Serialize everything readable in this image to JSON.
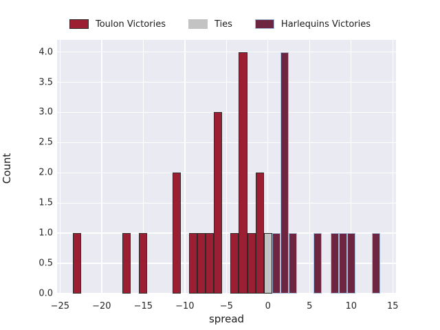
{
  "figure": {
    "background": "#ffffff",
    "plot_background": "#eaeaf2",
    "grid_color": "#ffffff",
    "text_color": "#1a1a1a",
    "tick_color": "#262626"
  },
  "legend": {
    "position": "top-horizontal",
    "items": [
      {
        "label": "Toulon Victories",
        "swatch_fill": "#9c1e32",
        "swatch_edge": "#2b2b2b"
      },
      {
        "label": "Ties",
        "swatch_fill": "#c3c3c3",
        "swatch_edge": "#c3c3c3"
      },
      {
        "label": "Harlequins Victories",
        "swatch_fill": "#6e2540",
        "swatch_edge": "#a3bcdc"
      }
    ]
  },
  "chart_data": {
    "type": "bar",
    "subtype": "histogram",
    "title": "",
    "xlabel": "spread",
    "ylabel": "Count",
    "xlim": [
      -25.36,
      15.39
    ],
    "ylim": [
      0,
      4.2
    ],
    "bin_width": 1,
    "grid": true,
    "legend_position": "top",
    "xticks": {
      "values": [
        -25,
        -20,
        -15,
        -10,
        -5,
        0,
        5,
        10,
        15
      ],
      "labels": [
        "−25",
        "−20",
        "−15",
        "−10",
        "−5",
        "0",
        "5",
        "10",
        "15"
      ]
    },
    "yticks": {
      "values": [
        0,
        0.5,
        1,
        1.5,
        2,
        2.5,
        3,
        3.5,
        4
      ],
      "labels": [
        "0.0",
        "0.5",
        "1.0",
        "1.5",
        "2.0",
        "2.5",
        "3.0",
        "3.5",
        "4.0"
      ]
    },
    "series": [
      {
        "name": "Toulon Victories",
        "fill": "#9c1e32",
        "edge": "#2b2b2b",
        "bins": [
          {
            "center": -23,
            "count": 1
          },
          {
            "center": -17,
            "count": 1
          },
          {
            "center": -15,
            "count": 1
          },
          {
            "center": -11,
            "count": 2
          },
          {
            "center": -9,
            "count": 1
          },
          {
            "center": -8,
            "count": 1
          },
          {
            "center": -7,
            "count": 1
          },
          {
            "center": -6,
            "count": 3
          },
          {
            "center": -4,
            "count": 1
          },
          {
            "center": -3,
            "count": 4
          },
          {
            "center": -2,
            "count": 1
          },
          {
            "center": -1,
            "count": 2
          }
        ]
      },
      {
        "name": "Ties",
        "fill": "#c3c3c3",
        "edge": "#1f1f1f",
        "bins": [
          {
            "center": 0,
            "count": 1
          }
        ]
      },
      {
        "name": "Harlequins Victories",
        "fill": "#6e2540",
        "edge": "#a3bcdc",
        "bins": [
          {
            "center": 1,
            "count": 1
          },
          {
            "center": 2,
            "count": 4
          },
          {
            "center": 3,
            "count": 1
          },
          {
            "center": 6,
            "count": 1
          },
          {
            "center": 8,
            "count": 1
          },
          {
            "center": 9,
            "count": 1
          },
          {
            "center": 10,
            "count": 1
          },
          {
            "center": 13,
            "count": 1
          }
        ]
      }
    ]
  }
}
